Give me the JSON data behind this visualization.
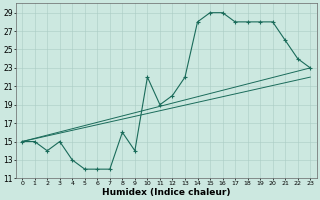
{
  "xlabel": "Humidex (Indice chaleur)",
  "xlim": [
    -0.5,
    23.5
  ],
  "ylim": [
    11,
    30
  ],
  "yticks": [
    11,
    13,
    15,
    17,
    19,
    21,
    23,
    25,
    27,
    29
  ],
  "xticks": [
    0,
    1,
    2,
    3,
    4,
    5,
    6,
    7,
    8,
    9,
    10,
    11,
    12,
    13,
    14,
    15,
    16,
    17,
    18,
    19,
    20,
    21,
    22,
    23
  ],
  "bg_color": "#cce8e0",
  "line_color": "#1a6b5a",
  "grid_color": "#aaccc4",
  "main_y": [
    15,
    15,
    14,
    15,
    13,
    12,
    12,
    12,
    16,
    14,
    22,
    19,
    20,
    22,
    28,
    29,
    29,
    28,
    28,
    28,
    28,
    26,
    24,
    23
  ],
  "trend1_x": [
    0,
    23
  ],
  "trend1_y": [
    15.0,
    23.0
  ],
  "trend2_x": [
    0,
    23
  ],
  "trend2_y": [
    15.0,
    22.0
  ]
}
